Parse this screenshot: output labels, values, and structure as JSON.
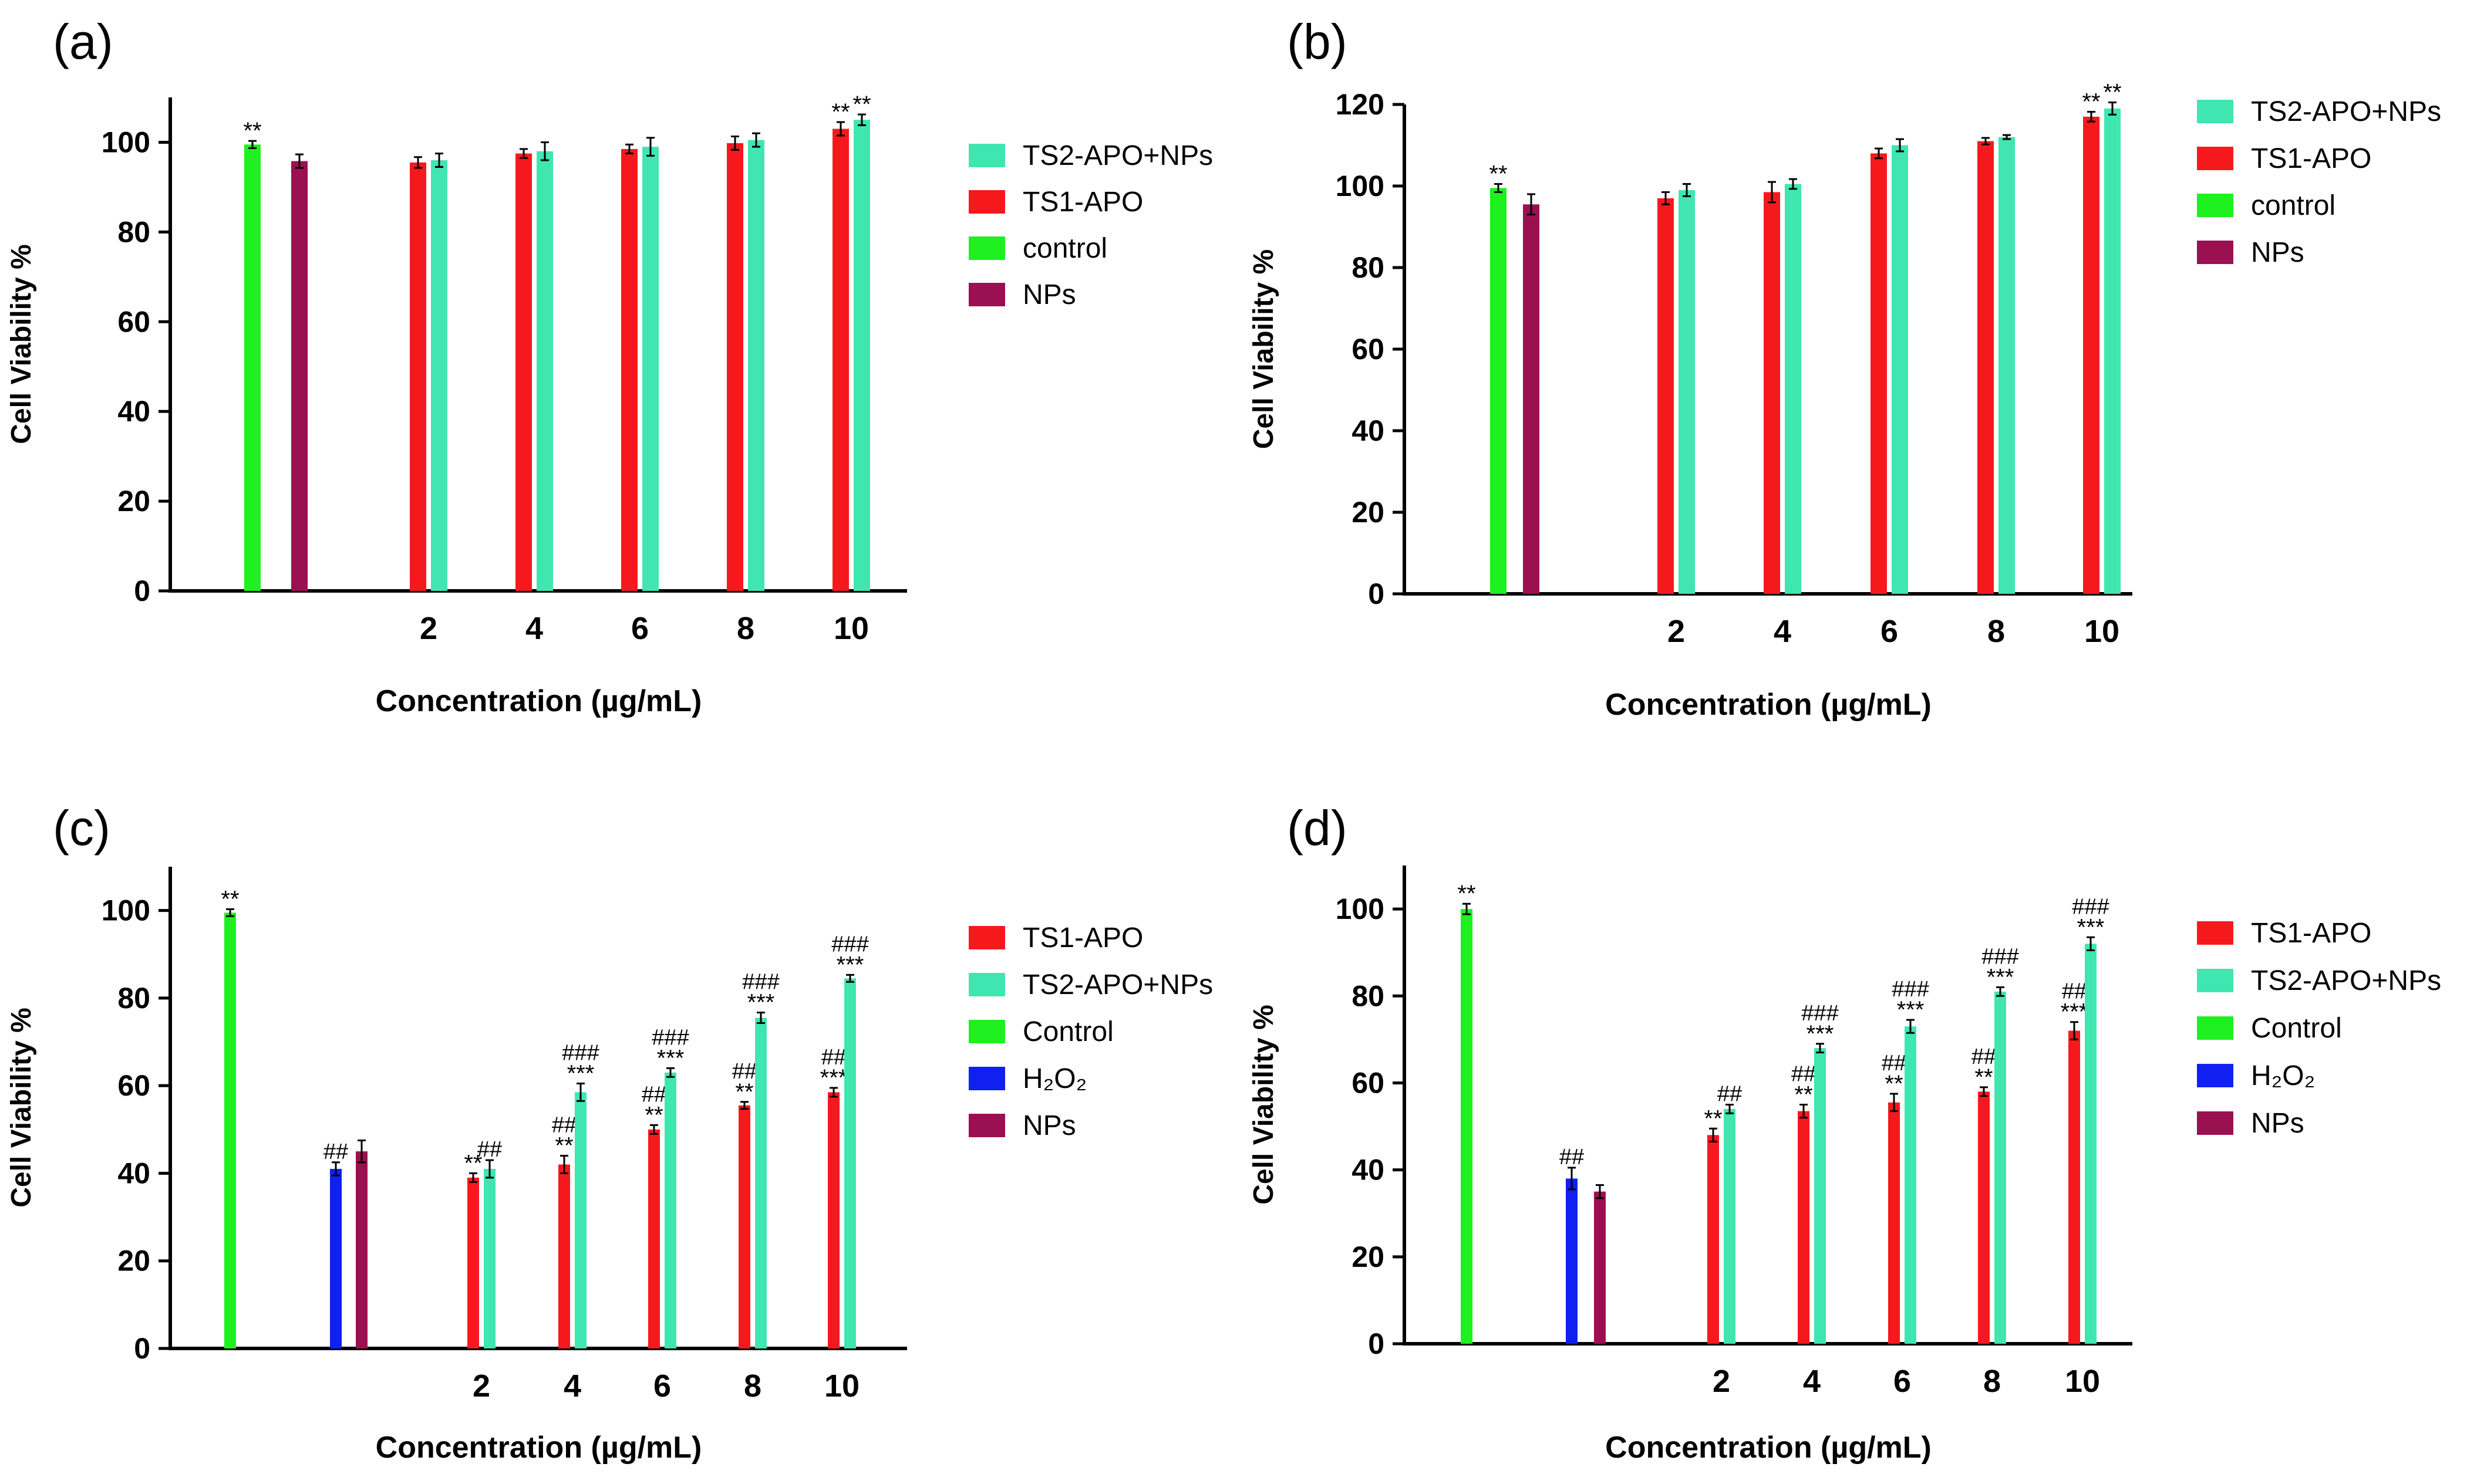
{
  "colors": {
    "TS1-APO": "#f5191e",
    "TS2-APO+NPs": "#3fe6b0",
    "control": "#1ff01f",
    "H2O2": "#1020f0",
    "NPs": "#9b1050"
  },
  "chart_data": [
    {
      "type": "bar",
      "panel_label": "(a)",
      "xlabel": "Concentration (µg/mL)",
      "ylabel": "Cell Viability %",
      "ylim": [
        0,
        110
      ],
      "yticks": [
        0,
        20,
        40,
        60,
        80,
        100
      ],
      "categories": [
        "2",
        "4",
        "6",
        "8",
        "10"
      ],
      "legend": [
        "TS2-APO+NPs",
        "TS1-APO",
        "control",
        "NPs"
      ],
      "legend_display": [
        "TS2-APO+NPs",
        "TS1-APO",
        "control",
        "NPs"
      ],
      "legend_position": "right",
      "single_bars": [
        {
          "name": "control",
          "value": 99.5,
          "err": 0.8,
          "sig": "**"
        },
        {
          "name": "NPs",
          "value": 95.8,
          "err": 1.5,
          "sig": ""
        }
      ],
      "series": [
        {
          "name": "TS1-APO",
          "values": [
            95.5,
            97.5,
            98.5,
            99.8,
            103
          ],
          "err": [
            1.2,
            1.0,
            1.0,
            1.5,
            1.5
          ],
          "sig": [
            "",
            "",
            "",
            "",
            "**"
          ],
          "hash": [
            "",
            "",
            "",
            "",
            ""
          ]
        },
        {
          "name": "TS2-APO+NPs",
          "values": [
            96,
            98,
            99,
            100.5,
            105
          ],
          "err": [
            1.5,
            2.0,
            2.0,
            1.5,
            1.2
          ],
          "sig": [
            "",
            "",
            "",
            "",
            "**"
          ],
          "hash": [
            "",
            "",
            "",
            "",
            ""
          ]
        }
      ]
    },
    {
      "type": "bar",
      "panel_label": "(b)",
      "xlabel": "Concentration (µg/mL)",
      "ylabel": "Cell Viability %",
      "ylim": [
        0,
        120
      ],
      "yticks": [
        0,
        20,
        40,
        60,
        80,
        100,
        120
      ],
      "categories": [
        "2",
        "4",
        "6",
        "8",
        "10"
      ],
      "legend": [
        "TS2-APO+NPs",
        "TS1-APO",
        "control",
        "NPs"
      ],
      "legend_display": [
        "TS2-APO+NPs",
        "TS1-APO",
        "control",
        "NPs"
      ],
      "legend_position": "right",
      "single_bars": [
        {
          "name": "control",
          "value": 99.5,
          "err": 1.0,
          "sig": "**"
        },
        {
          "name": "NPs",
          "value": 95.5,
          "err": 2.5,
          "sig": ""
        }
      ],
      "series": [
        {
          "name": "TS1-APO",
          "values": [
            97,
            98.5,
            108,
            111,
            117
          ],
          "err": [
            1.5,
            2.5,
            1.2,
            0.8,
            1.2
          ],
          "sig": [
            "",
            "",
            "",
            "",
            "**"
          ],
          "hash": [
            "",
            "",
            "",
            "",
            ""
          ]
        },
        {
          "name": "TS2-APO+NPs",
          "values": [
            99,
            100.5,
            110,
            112,
            119
          ],
          "err": [
            1.5,
            1.2,
            1.5,
            0.5,
            1.5
          ],
          "sig": [
            "",
            "",
            "",
            "",
            "**"
          ],
          "hash": [
            "",
            "",
            "",
            "",
            ""
          ]
        }
      ]
    },
    {
      "type": "bar",
      "panel_label": "(c)",
      "xlabel": "Concentration (µg/mL)",
      "ylabel": "Cell Viability %",
      "ylim": [
        0,
        110
      ],
      "yticks": [
        0,
        20,
        40,
        60,
        80,
        100
      ],
      "categories": [
        "2",
        "4",
        "6",
        "8",
        "10"
      ],
      "legend": [
        "TS1-APO",
        "TS2-APO+NPs",
        "Control",
        "H2O2",
        "NPs"
      ],
      "legend_display": [
        "TS1-APO",
        "TS2-APO+NPs",
        "Control",
        "H₂O₂",
        "NPs"
      ],
      "legend_position": "right",
      "single_bars": [
        {
          "name": "Control",
          "value": 99.5,
          "err": 0.8,
          "sig": "**"
        },
        {
          "name": "H2O2",
          "value": 41,
          "err": 1.5,
          "sig": "##"
        },
        {
          "name": "NPs",
          "value": 45,
          "err": 2.5,
          "sig": ""
        }
      ],
      "series": [
        {
          "name": "TS1-APO",
          "values": [
            39,
            42,
            50,
            55.5,
            58.5
          ],
          "err": [
            1.0,
            2.0,
            1.0,
            0.8,
            1.0
          ],
          "sig": [
            "**",
            "**",
            "**",
            "**",
            "***"
          ],
          "hash": [
            "",
            "##",
            "##",
            "##",
            "##"
          ]
        },
        {
          "name": "TS2-APO+NPs",
          "values": [
            41,
            58.5,
            63,
            75.5,
            84.5
          ],
          "err": [
            2.0,
            2.0,
            1.0,
            1.2,
            0.8
          ],
          "sig": [
            "",
            "***",
            "***",
            "***",
            "***"
          ],
          "hash": [
            "##",
            "###",
            "###",
            "###",
            "###"
          ]
        }
      ]
    },
    {
      "type": "bar",
      "panel_label": "(d)",
      "xlabel": "Concentration (µg/mL)",
      "ylabel": "Cell Viability %",
      "ylim": [
        0,
        110
      ],
      "yticks": [
        0,
        20,
        40,
        60,
        80,
        100
      ],
      "categories": [
        "2",
        "4",
        "6",
        "8",
        "10"
      ],
      "legend": [
        "TS1-APO",
        "TS2-APO+NPs",
        "Control",
        "H2O2",
        "NPs"
      ],
      "legend_display": [
        "TS1-APO",
        "TS2-APO+NPs",
        "Control",
        "H₂O₂",
        "NPs"
      ],
      "legend_position": "right",
      "single_bars": [
        {
          "name": "Control",
          "value": 100,
          "err": 1.2,
          "sig": "**"
        },
        {
          "name": "H2O2",
          "value": 38,
          "err": 2.5,
          "sig": "##"
        },
        {
          "name": "NPs",
          "value": 35,
          "err": 1.5,
          "sig": ""
        }
      ],
      "series": [
        {
          "name": "TS1-APO",
          "values": [
            48,
            53.5,
            55.5,
            58,
            72
          ],
          "err": [
            1.5,
            1.5,
            2.0,
            1.0,
            2.0
          ],
          "sig": [
            "**",
            "**",
            "**",
            "**",
            "***"
          ],
          "hash": [
            "",
            "##",
            "##",
            "##",
            "##"
          ]
        },
        {
          "name": "TS2-APO+NPs",
          "values": [
            54,
            68,
            73,
            81,
            92
          ],
          "err": [
            1.0,
            1.0,
            1.5,
            1.0,
            1.5
          ],
          "sig": [
            "",
            "***",
            "***",
            "***",
            "***"
          ],
          "hash": [
            "##",
            "###",
            "###",
            "###",
            "###"
          ]
        }
      ]
    }
  ]
}
